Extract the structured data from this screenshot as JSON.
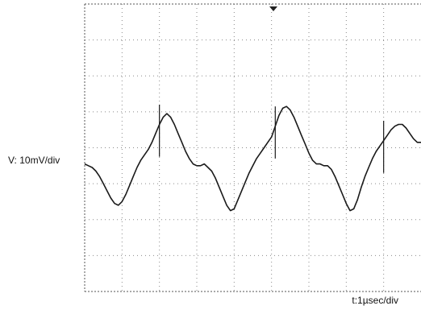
{
  "chart_data": {
    "type": "line",
    "title": "",
    "ylabel": "V: 10mV/div",
    "xlabel": "t:1µsec/div",
    "grid": true,
    "xlim": [
      0,
      9
    ],
    "ylim": [
      -4,
      4
    ],
    "series": [
      {
        "x": [
          0,
          0.1,
          0.2,
          0.3,
          0.4,
          0.5,
          0.6,
          0.7,
          0.8,
          0.9,
          1.0,
          1.1,
          1.2,
          1.3,
          1.4,
          1.5,
          1.6,
          1.7,
          1.8,
          1.9,
          2.0,
          2.1,
          2.2,
          2.3,
          2.4,
          2.5,
          2.6,
          2.7,
          2.8,
          2.9,
          3.0,
          3.1,
          3.2,
          3.3,
          3.4,
          3.5,
          3.6,
          3.7,
          3.8,
          3.9,
          4.0,
          4.1,
          4.2,
          4.3,
          4.4,
          4.5,
          4.6,
          4.7,
          4.8,
          4.9,
          5.0,
          5.1,
          5.2,
          5.3,
          5.4,
          5.5,
          5.6,
          5.7,
          5.8,
          5.9,
          6.0,
          6.1,
          6.2,
          6.3,
          6.4,
          6.5,
          6.6,
          6.7,
          6.8,
          6.9,
          7.0,
          7.1,
          7.2,
          7.3,
          7.4,
          7.5,
          7.6,
          7.7,
          7.8,
          7.9,
          8.0,
          8.1,
          8.2,
          8.3,
          8.4,
          8.5,
          8.6,
          8.7,
          8.8,
          8.9,
          9.0
        ],
        "y": [
          -0.45,
          -0.5,
          -0.55,
          -0.65,
          -0.8,
          -1.0,
          -1.2,
          -1.4,
          -1.55,
          -1.6,
          -1.5,
          -1.3,
          -1.05,
          -0.8,
          -0.55,
          -0.35,
          -0.2,
          -0.05,
          0.15,
          0.4,
          0.65,
          0.85,
          0.95,
          0.85,
          0.65,
          0.4,
          0.15,
          -0.1,
          -0.3,
          -0.45,
          -0.5,
          -0.5,
          -0.45,
          -0.55,
          -0.65,
          -0.85,
          -1.1,
          -1.35,
          -1.6,
          -1.75,
          -1.7,
          -1.45,
          -1.2,
          -0.95,
          -0.7,
          -0.5,
          -0.3,
          -0.15,
          0.0,
          0.15,
          0.3,
          0.6,
          0.9,
          1.1,
          1.15,
          1.05,
          0.85,
          0.6,
          0.35,
          0.1,
          -0.15,
          -0.35,
          -0.45,
          -0.45,
          -0.5,
          -0.5,
          -0.6,
          -0.8,
          -1.05,
          -1.3,
          -1.55,
          -1.75,
          -1.7,
          -1.45,
          -1.1,
          -0.8,
          -0.55,
          -0.3,
          -0.1,
          0.05,
          0.2,
          0.35,
          0.5,
          0.6,
          0.65,
          0.65,
          0.55,
          0.4,
          0.25,
          0.15,
          0.15
        ]
      }
    ]
  }
}
